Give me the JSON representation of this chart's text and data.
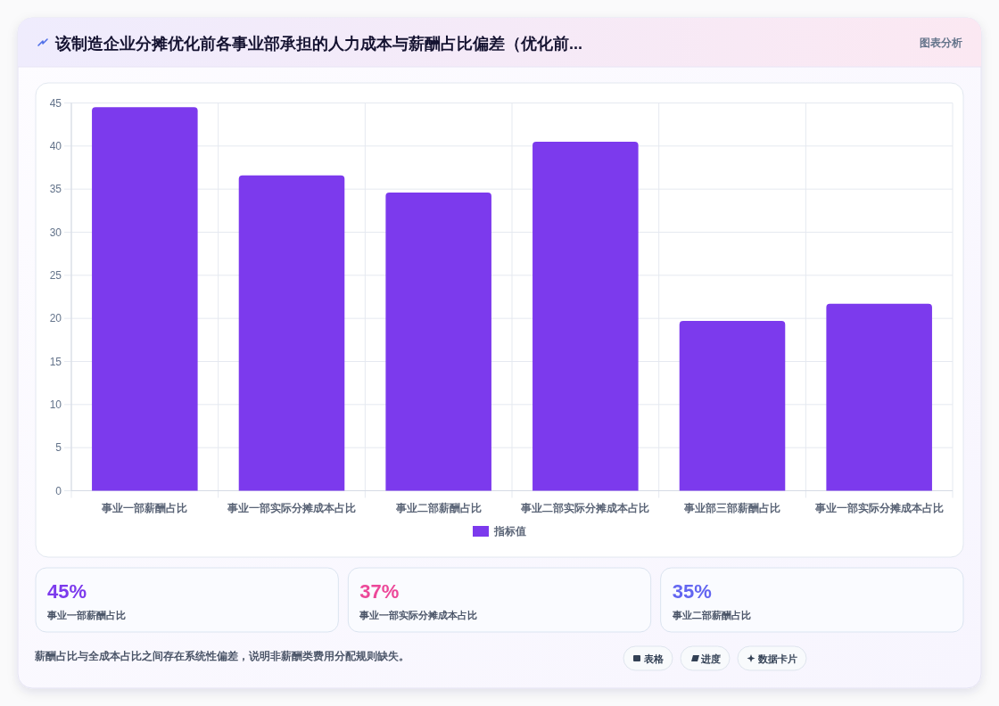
{
  "chart_data": [
    {
      "type": "bar",
      "title": "该制造企业分摊优化前各事业部承担的人力成本与薪酬占比偏差（优化前...",
      "subtitle": "图表分析",
      "categories": [
        "事业一部薪酬占比",
        "事业一部实际分摊成本占比",
        "事业二部薪酬占比",
        "事业二部实际分摊成本占比",
        "事业部三部薪酬占比",
        "事业一部实际分摊成本占比"
      ],
      "series": [
        {
          "name": "指标值",
          "color": "#7c3aed",
          "values": [
            44.5,
            36.6,
            34.6,
            40.5,
            19.7,
            21.7
          ]
        }
      ],
      "ylim": [
        0,
        45
      ],
      "yticks": [
        0,
        5,
        10,
        15,
        20,
        25,
        30,
        35,
        40,
        45
      ],
      "grid": true,
      "legend": "bottom",
      "annotations": [
        "薪酬占比与全成本占比之间存在系统性偏差，说明非薪酬类费用分配规则缺失。",
        "表格",
        "进度",
        "数据卡片"
      ]
    },
    {
      "type": "other",
      "categories": [
        "事业一部薪酬占比",
        "事业一部实际分摊成本占比",
        "事业二部薪酬占比"
      ],
      "value_labels": [
        "45%",
        "37%",
        "35%"
      ]
    }
  ]
}
